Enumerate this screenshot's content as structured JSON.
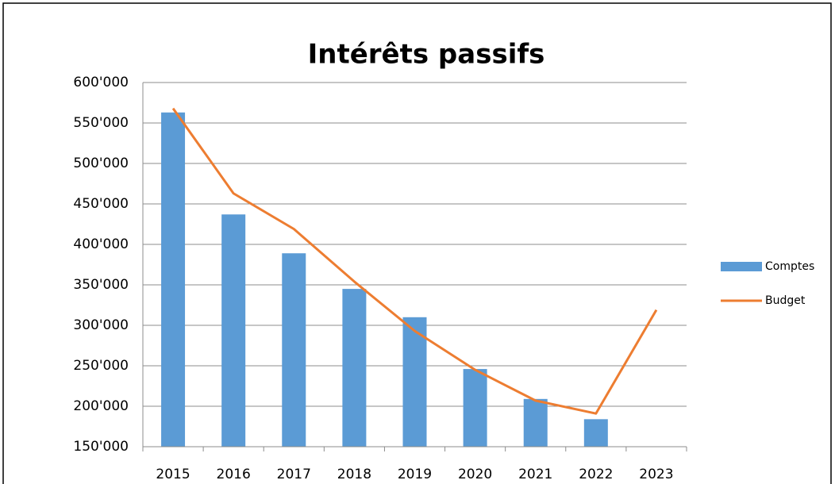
{
  "chart_data": {
    "type": "bar-line",
    "title": "Intérêts passifs",
    "categories": [
      "2015",
      "2016",
      "2017",
      "2018",
      "2019",
      "2020",
      "2021",
      "2022",
      "2023"
    ],
    "series": [
      {
        "name": "Comptes",
        "type": "bar",
        "color": "#5b9bd5",
        "values": [
          563000,
          437000,
          389000,
          345000,
          310000,
          246000,
          209000,
          184000,
          null
        ]
      },
      {
        "name": "Budget",
        "type": "line",
        "color": "#ed7d31",
        "values": [
          568000,
          463000,
          419000,
          354000,
          293000,
          245000,
          207000,
          191000,
          319000
        ]
      }
    ],
    "ylim": [
      150000,
      600000
    ],
    "yticks": [
      {
        "value": 150000,
        "label": "150'000"
      },
      {
        "value": 200000,
        "label": "200'000"
      },
      {
        "value": 250000,
        "label": "250'000"
      },
      {
        "value": 300000,
        "label": "300'000"
      },
      {
        "value": 350000,
        "label": "350'000"
      },
      {
        "value": 400000,
        "label": "400'000"
      },
      {
        "value": 450000,
        "label": "450'000"
      },
      {
        "value": 500000,
        "label": "500'000"
      },
      {
        "value": 550000,
        "label": "550'000"
      },
      {
        "value": 600000,
        "label": "600'000"
      }
    ],
    "grid": true,
    "legend": "right"
  }
}
